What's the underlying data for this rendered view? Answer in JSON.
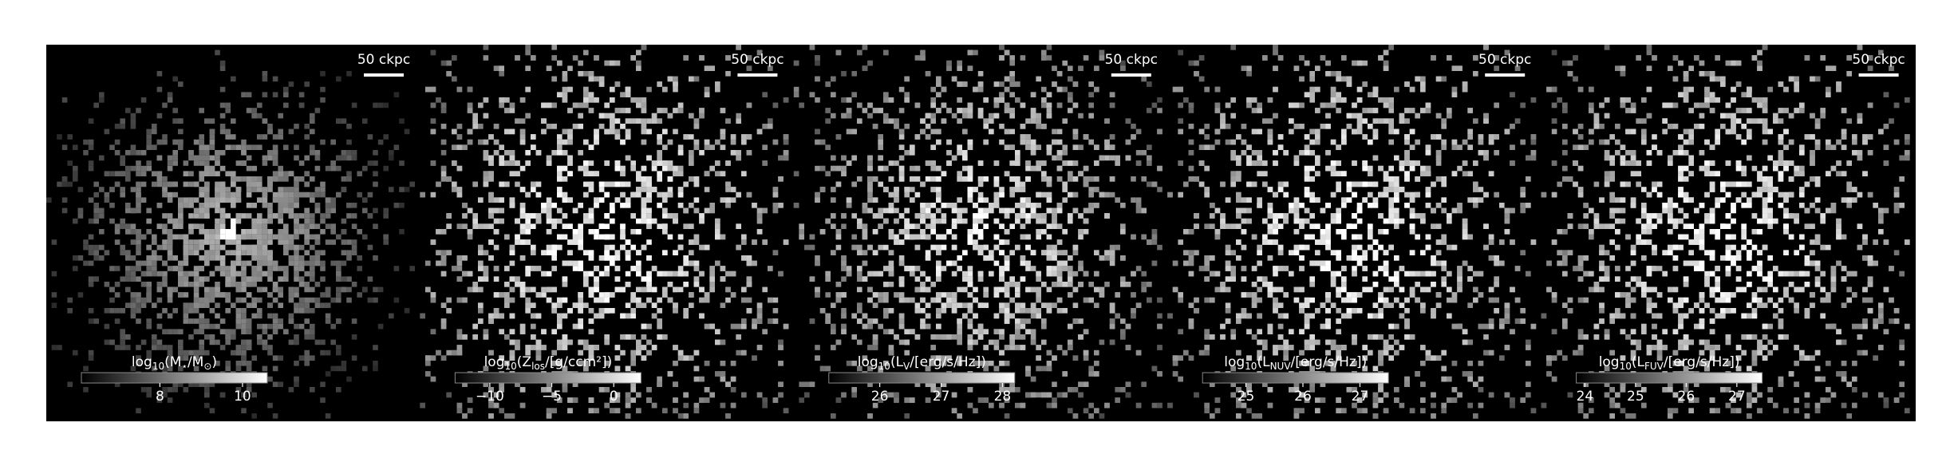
{
  "panels": [
    {
      "scale_bar": "50 ckpc",
      "label": [
        "log",
        "10",
        "(M",
        "⋆",
        "/M",
        "⊙",
        ")"
      ],
      "cbar_lim": [
        6.1,
        10.6
      ],
      "cbar_ticks": [
        8,
        10
      ],
      "spread": 0.45
    },
    {
      "scale_bar": "50 ckpc",
      "label": [
        "log",
        "10",
        "(Z",
        "los",
        "/[g/ccm²])"
      ],
      "cbar_lim": [
        -12.8,
        2.2
      ],
      "cbar_ticks": [
        {
          "value": -10,
          "label": "−10"
        },
        {
          "value": -5,
          "label": "−5"
        },
        0
      ],
      "spread": 1.0
    },
    {
      "scale_bar": "50 ckpc",
      "label": [
        "log",
        "10",
        "(L",
        "V",
        "/[erg/s/Hz])"
      ],
      "cbar_lim": [
        25.17,
        28.2
      ],
      "cbar_ticks": [
        26,
        27,
        28
      ],
      "spread": 0.9
    },
    {
      "scale_bar": "50 ckpc",
      "label": [
        "log",
        "10",
        "(L",
        "NUV",
        "/[erg/s/Hz])"
      ],
      "cbar_lim": [
        24.24,
        27.5
      ],
      "cbar_ticks": [
        25,
        26,
        27
      ],
      "spread": 1.0
    },
    {
      "scale_bar": "50 ckpc",
      "label": [
        "log",
        "10",
        "(L",
        "FUV",
        "/[erg/s/Hz])"
      ],
      "cbar_lim": [
        23.83,
        27.5
      ],
      "cbar_ticks": [
        24,
        25,
        26,
        27
      ],
      "spread": 1.0
    }
  ]
}
